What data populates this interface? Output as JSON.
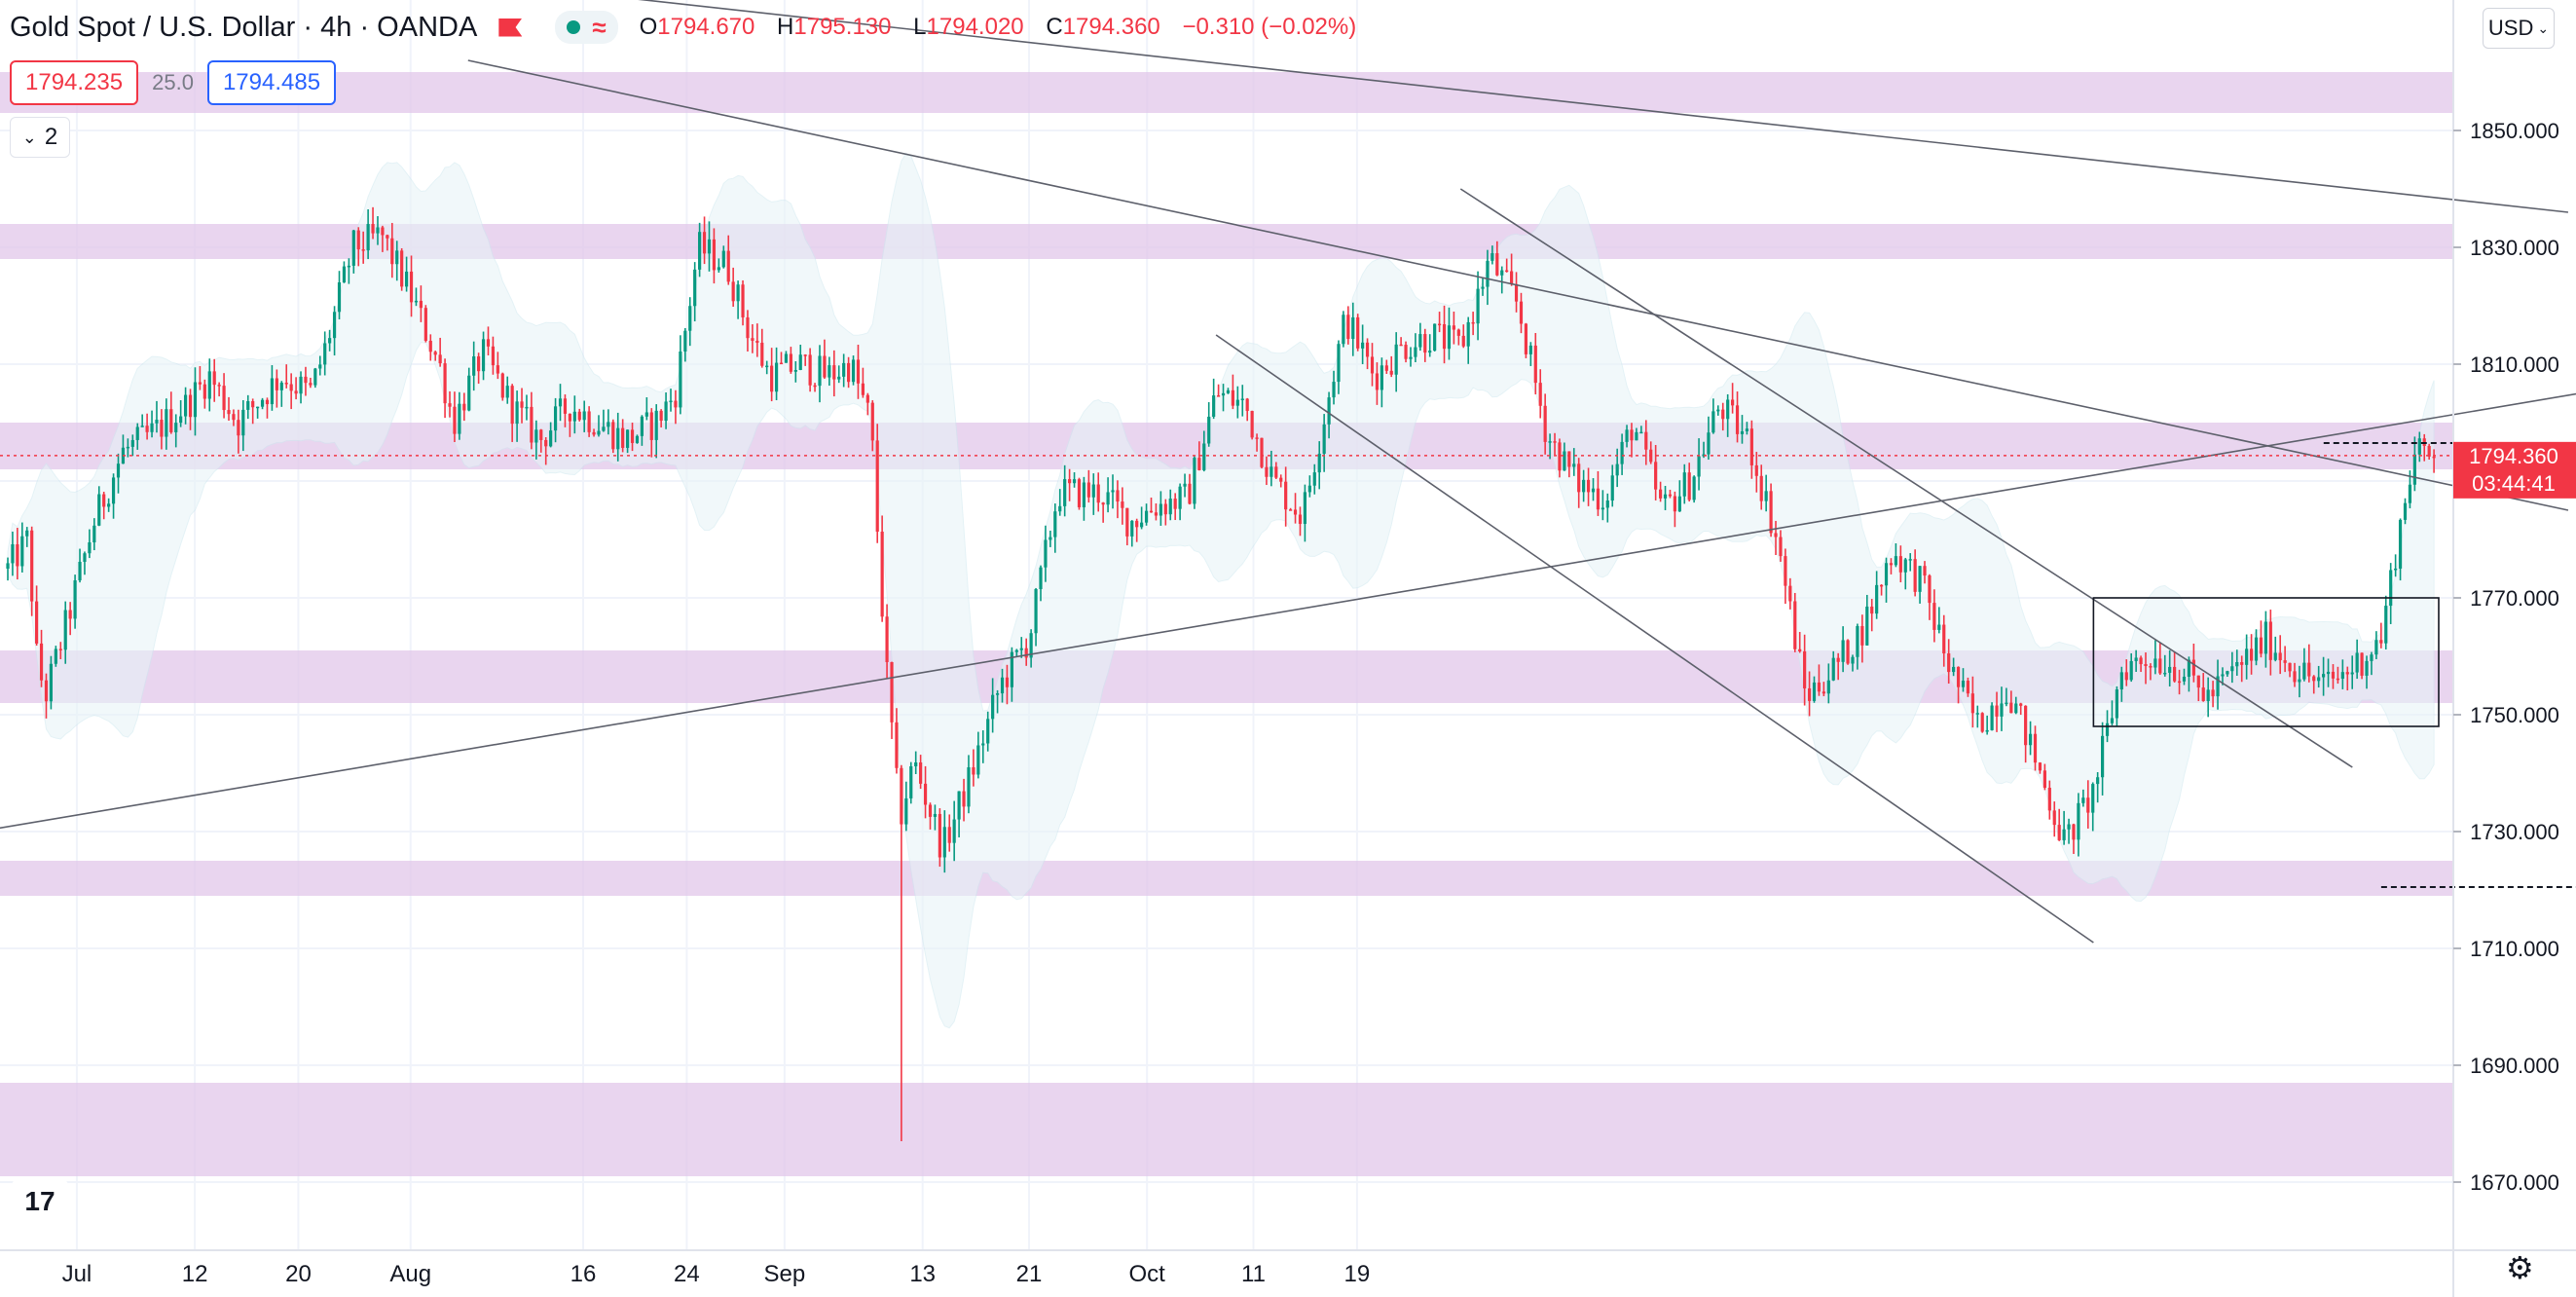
{
  "header": {
    "symbol": "Gold Spot / U.S. Dollar",
    "interval": "4h",
    "source": "OANDA",
    "ohlc": {
      "o_label": "O",
      "o": "1794.670",
      "h_label": "H",
      "h": "1795.130",
      "l_label": "L",
      "l": "1794.020",
      "c_label": "C",
      "c": "1794.360",
      "change": "−0.310 (−0.02%)"
    }
  },
  "quote": {
    "sell": "1794.235",
    "spread": "25.0",
    "buy": "1794.485"
  },
  "indicators_toggle": {
    "count": "2"
  },
  "currency": {
    "label": "USD"
  },
  "last_price": {
    "value": "1794.360",
    "countdown": "03:44:41"
  },
  "colors": {
    "up": "#089981",
    "down": "#f23645",
    "zone": "#e2c7ea",
    "grid": "#f0f3fa",
    "text": "#131722"
  },
  "icons": [
    "flag-icon",
    "market-open-dot-icon",
    "wave-icon",
    "chevron-down-icon",
    "tradingview-logo-icon",
    "settings-gear-icon"
  ],
  "chart_data": {
    "type": "candlestick",
    "title": "Gold Spot / U.S. Dollar",
    "timeframe": "4h",
    "y_axis": {
      "ticks": [
        "1850.000",
        "1830.000",
        "1810.000",
        "1770.000",
        "1750.000",
        "1730.000",
        "1710.000",
        "1690.000",
        "1670.000"
      ],
      "ylim": [
        1664,
        1880
      ]
    },
    "x_axis": {
      "ticks": [
        "Jul",
        "12",
        "20",
        "Aug",
        "16",
        "24",
        "Sep",
        "13",
        "21",
        "Oct",
        "11",
        "19"
      ]
    },
    "path": [
      [
        0,
        1775
      ],
      [
        0.7,
        1780
      ],
      [
        1.0,
        1760
      ],
      [
        1.3,
        1753
      ],
      [
        2.0,
        1765
      ],
      [
        3.0,
        1783
      ],
      [
        4.0,
        1795
      ],
      [
        5.0,
        1798
      ],
      [
        6.2,
        1803
      ],
      [
        7.0,
        1808
      ],
      [
        8.0,
        1800
      ],
      [
        9.5,
        1808
      ],
      [
        10.5,
        1805
      ],
      [
        11.0,
        1812
      ],
      [
        12.0,
        1830
      ],
      [
        13.0,
        1832
      ],
      [
        14.0,
        1822
      ],
      [
        15.0,
        1810
      ],
      [
        15.5,
        1800
      ],
      [
        16.5,
        1812
      ],
      [
        17.5,
        1803
      ],
      [
        18.5,
        1797
      ],
      [
        19.5,
        1803
      ],
      [
        20.5,
        1800
      ],
      [
        21.5,
        1797
      ],
      [
        22.5,
        1800
      ],
      [
        23.2,
        1805
      ],
      [
        24.0,
        1830
      ],
      [
        25.0,
        1827
      ],
      [
        25.8,
        1815
      ],
      [
        26.5,
        1808
      ],
      [
        27.5,
        1810
      ],
      [
        28.5,
        1808
      ],
      [
        29.3,
        1810
      ],
      [
        30.0,
        1800
      ],
      [
        30.5,
        1760
      ],
      [
        31.0,
        1732
      ],
      [
        31.5,
        1742
      ],
      [
        32.5,
        1727
      ],
      [
        33.5,
        1740
      ],
      [
        34.5,
        1755
      ],
      [
        35.5,
        1763
      ],
      [
        36.5,
        1788
      ],
      [
        38.0,
        1788
      ],
      [
        39.0,
        1783
      ],
      [
        40.0,
        1786
      ],
      [
        41.0,
        1787
      ],
      [
        42.0,
        1805
      ],
      [
        43.0,
        1803
      ],
      [
        44.0,
        1790
      ],
      [
        45.0,
        1784
      ],
      [
        46.5,
        1818
      ],
      [
        47.5,
        1808
      ],
      [
        48.5,
        1813
      ],
      [
        49.5,
        1815
      ],
      [
        50.5,
        1813
      ],
      [
        51.0,
        1820
      ],
      [
        51.5,
        1828
      ],
      [
        52.5,
        1820
      ],
      [
        53.5,
        1798
      ],
      [
        54.5,
        1790
      ],
      [
        55.5,
        1787
      ],
      [
        56.5,
        1800
      ],
      [
        57.5,
        1785
      ],
      [
        58.5,
        1790
      ],
      [
        59.5,
        1803
      ],
      [
        60.5,
        1797
      ],
      [
        61.5,
        1780
      ],
      [
        62.5,
        1753
      ],
      [
        63.5,
        1758
      ],
      [
        64.5,
        1765
      ],
      [
        65.5,
        1778
      ],
      [
        66.5,
        1773
      ],
      [
        67.5,
        1758
      ],
      [
        68.5,
        1748
      ],
      [
        69.5,
        1755
      ],
      [
        70.5,
        1742
      ],
      [
        71.5,
        1728
      ],
      [
        72.5,
        1737
      ],
      [
        73.5,
        1758
      ],
      [
        74.5,
        1760
      ],
      [
        75.5,
        1758
      ],
      [
        76.5,
        1753
      ],
      [
        77.5,
        1758
      ],
      [
        78.5,
        1763
      ],
      [
        79.5,
        1758
      ],
      [
        80.5,
        1755
      ],
      [
        81.5,
        1758
      ],
      [
        82.5,
        1763
      ],
      [
        83.0,
        1778
      ],
      [
        83.6,
        1794
      ],
      [
        84.0,
        1795
      ],
      [
        84.4,
        1794
      ]
    ],
    "spikes": [
      {
        "x": 31.0,
        "low": 1677
      }
    ],
    "support_resistance_zones": [
      [
        1853,
        1860
      ],
      [
        1828,
        1834
      ],
      [
        1792,
        1800
      ],
      [
        1752,
        1761
      ],
      [
        1719,
        1725
      ],
      [
        1671,
        1687
      ]
    ],
    "trendlines": [
      {
        "from": [
          -3,
          1886
        ],
        "to": [
          89,
          1836
        ]
      },
      {
        "from": [
          16,
          1862
        ],
        "to": [
          89,
          1785
        ]
      },
      {
        "from": [
          -1,
          1730
        ],
        "to": [
          93,
          1808
        ]
      },
      {
        "from": [
          42,
          1815
        ],
        "to": [
          72.5,
          1711
        ]
      },
      {
        "from": [
          50.5,
          1840
        ],
        "to": [
          81.5,
          1741
        ]
      }
    ],
    "consolidation_box": {
      "x": [
        72.5,
        84.5
      ],
      "y": [
        1748,
        1770
      ]
    },
    "dashed_levels": [
      {
        "x": [
          80.5,
          90.5
        ],
        "y": 1796.5
      },
      {
        "x": [
          82.5,
          92.5
        ],
        "y": 1720.5
      }
    ]
  }
}
